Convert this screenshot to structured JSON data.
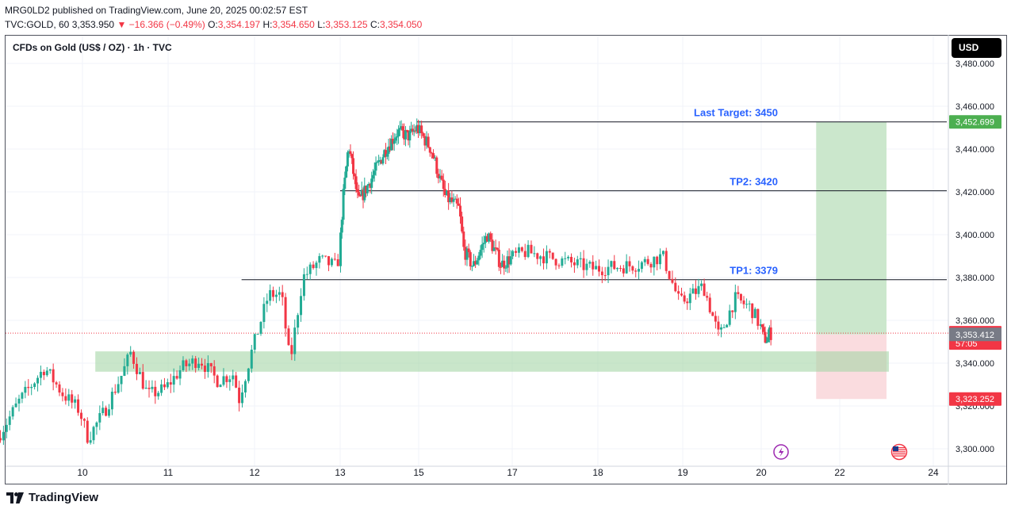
{
  "header": {
    "publisher": "MRG0LD2 published on TradingView.com, June 20, 2025 00:02:57 EST",
    "ticker": "TVC:GOLD, 60",
    "last": "3,353.950",
    "change": "▼ −16.366 (−0.49%)",
    "o_label": "O:",
    "o_val": "3,354.197",
    "h_label": "H:",
    "h_val": "3,354.650",
    "l_label": "L:",
    "l_val": "3,353.125",
    "c_label": "C:",
    "c_val": "3,354.050"
  },
  "symbol_title": "CFDs on Gold (US$ / OZ) · 1h · TVC",
  "currency_button": "USD",
  "footer": {
    "brand": "TradingView"
  },
  "colors": {
    "up": "#22ab94",
    "down": "#f23645",
    "target_zone": "#c8e6c9",
    "stop_zone": "#fadadd",
    "demand_zone": "#a5d6a7",
    "label_blue": "#2962ff"
  },
  "chart_data": {
    "type": "candlestick",
    "title": "CFDs on Gold (US$ / OZ) · 1h · TVC",
    "ylim": [
      3290,
      3490
    ],
    "y_ticks": [
      3300,
      3320,
      3340,
      3360,
      3380,
      3400,
      3420,
      3440,
      3460,
      3480
    ],
    "y_tick_labels": [
      "3,300.000",
      "3,320.000",
      "3,340.000",
      "3,360.000",
      "3,380.000",
      "3,400.000",
      "3,420.000",
      "3,440.000",
      "3,460.000",
      "3,480.000"
    ],
    "x_ticks": [
      {
        "label": "10",
        "x": 10
      },
      {
        "label": "11",
        "x": 11
      },
      {
        "label": "12",
        "x": 12
      },
      {
        "label": "13",
        "x": 13
      },
      {
        "label": "15",
        "x": 15
      },
      {
        "label": "17",
        "x": 17
      },
      {
        "label": "18",
        "x": 18
      },
      {
        "label": "19",
        "x": 19
      },
      {
        "label": "20",
        "x": 20
      },
      {
        "label": "22",
        "x": 22
      },
      {
        "label": "24",
        "x": 24
      }
    ],
    "price_path": [
      [
        9.05,
        3305
      ],
      [
        9.3,
        3322
      ],
      [
        9.6,
        3338
      ],
      [
        9.8,
        3326
      ],
      [
        10.0,
        3318
      ],
      [
        10.1,
        3305
      ],
      [
        10.3,
        3318
      ],
      [
        10.5,
        3335
      ],
      [
        10.6,
        3345
      ],
      [
        10.8,
        3325
      ],
      [
        11.0,
        3328
      ],
      [
        11.2,
        3338
      ],
      [
        11.4,
        3342
      ],
      [
        11.6,
        3332
      ],
      [
        11.8,
        3335
      ],
      [
        11.85,
        3322
      ],
      [
        12.0,
        3345
      ],
      [
        12.2,
        3372
      ],
      [
        12.35,
        3372
      ],
      [
        12.45,
        3340
      ],
      [
        12.6,
        3380
      ],
      [
        12.8,
        3388
      ],
      [
        13.0,
        3385
      ],
      [
        13.1,
        3415
      ],
      [
        13.25,
        3442
      ],
      [
        13.5,
        3415
      ],
      [
        13.8,
        3425
      ],
      [
        14.2,
        3440
      ],
      [
        14.5,
        3448
      ],
      [
        14.8,
        3446
      ],
      [
        15.0,
        3450
      ],
      [
        15.3,
        3440
      ],
      [
        15.6,
        3418
      ],
      [
        15.9,
        3412
      ],
      [
        16.0,
        3393
      ],
      [
        16.2,
        3385
      ],
      [
        16.5,
        3400
      ],
      [
        16.8,
        3386
      ],
      [
        17.2,
        3392
      ],
      [
        17.6,
        3388
      ],
      [
        18.0,
        3384
      ],
      [
        18.5,
        3386
      ],
      [
        18.8,
        3390
      ],
      [
        19.0,
        3368
      ],
      [
        19.3,
        3376
      ],
      [
        19.5,
        3352
      ],
      [
        19.7,
        3370
      ],
      [
        19.9,
        3366
      ],
      [
        20.1,
        3352
      ],
      [
        20.2,
        3351
      ],
      [
        20.25,
        3354.05
      ]
    ],
    "current_price": 3354.05,
    "levels": [
      {
        "label": "Last Target: 3450",
        "value": 3452.699,
        "from_x": 14.95
      },
      {
        "label": "TP2: 3420",
        "value": 3420.5,
        "from_x": 13.0
      },
      {
        "label": "TP1: 3379",
        "value": 3379,
        "from_x": 11.85
      }
    ],
    "demand_zone": {
      "from_x": 10.15,
      "to_x": 23.05,
      "low": 3336,
      "high": 3345.5
    },
    "position": {
      "from_x": 21.4,
      "to_x": 23.0,
      "entry": 3353.412,
      "target": 3452.699,
      "stop": 3323.252
    },
    "price_badges": [
      {
        "value": "3,452.699",
        "price": 3452.699,
        "color": "#4caf50"
      },
      {
        "value": "3,354.050",
        "price": 3354.05,
        "color": "#f23645",
        "sub": "57:05"
      },
      {
        "value": "3,353.412",
        "price": 3353.412,
        "color": "#787b86"
      },
      {
        "value": "3,323.252",
        "price": 3323.252,
        "color": "#f23645"
      }
    ]
  }
}
